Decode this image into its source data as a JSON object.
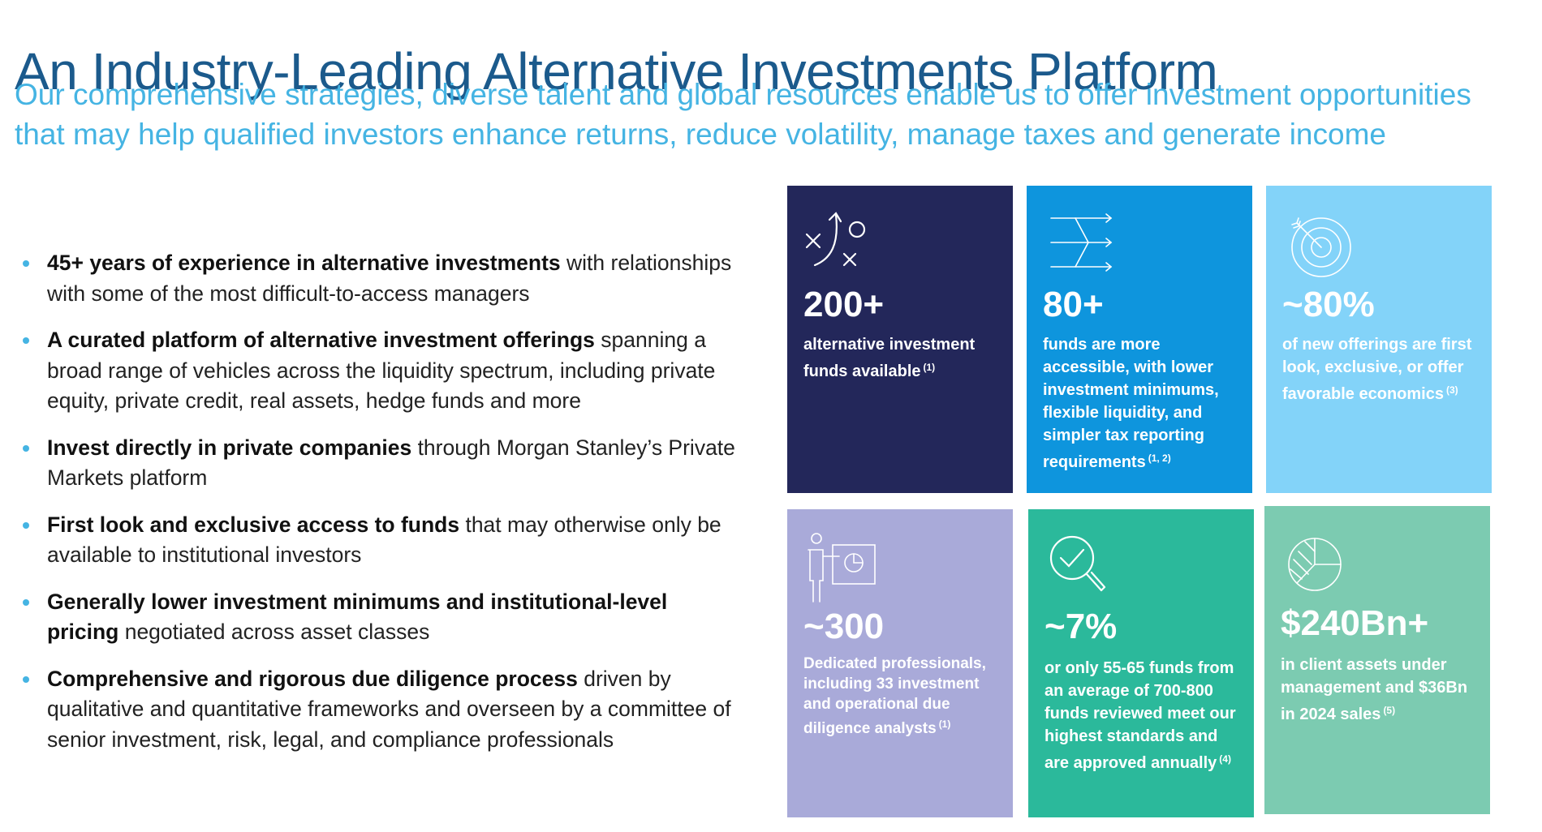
{
  "header": {
    "title": "An Industry-Leading Alternative Investments Platform",
    "subtitle_line1": "Our comprehensive strategies, diverse talent and global resources enable us to offer investment opportunities",
    "subtitle_line2": "that may help qualified investors enhance returns, reduce volatility, manage taxes and generate income"
  },
  "bullets": [
    {
      "bold": "45+ years of experience in alternative investments",
      "rest": " with relationships with some of the most difficult-to-access managers"
    },
    {
      "bold": "A curated platform of alternative investment offerings",
      "rest": " spanning a broad range of vehicles across the liquidity spectrum, including private equity, private credit, real assets, hedge funds and more"
    },
    {
      "bold": "Invest directly in private companies",
      "rest": " through Morgan Stanley’s Private Markets platform"
    },
    {
      "bold": "First look and exclusive access to funds",
      "rest": " that may otherwise only be available to institutional investors"
    },
    {
      "bold": "Generally lower investment minimums and institutional-level pricing",
      "rest": " negotiated across asset classes"
    },
    {
      "bold": "Comprehensive and rigorous due diligence process",
      "rest": " driven by qualitative and quantitative frameworks and overseen by a committee of senior investment, risk, legal, and compliance professionals"
    }
  ],
  "tiles": [
    {
      "stat": "200+",
      "desc": "alternative investment funds available",
      "note": "(1)",
      "color": "#23275a",
      "icon": "strategy-play-icon"
    },
    {
      "stat": "80+",
      "desc": "funds are more accessible, with lower investment minimums, flexible liquidity, and simpler tax reporting requirements",
      "note": "(1, 2)",
      "color": "#0e95dd",
      "icon": "merge-arrows-icon"
    },
    {
      "stat": "~80%",
      "desc": "of new offerings are first look, exclusive, or offer favorable economics",
      "note": "(3)",
      "color": "#83d3f9",
      "icon": "target-icon"
    },
    {
      "stat": "~300",
      "desc": "Dedicated professionals, including 33 investment and operational due diligence analysts",
      "note": "(1)",
      "color": "#a9aad9",
      "icon": "presenter-chart-icon"
    },
    {
      "stat": "~7%",
      "desc": "or only 55-65 funds from an average of 700-800 funds reviewed meet our highest standards and are approved annually",
      "note": "(4)",
      "color": "#2bb99b",
      "icon": "magnifier-check-icon"
    },
    {
      "stat": "$240Bn+",
      "desc": "in client assets under management and $36Bn in 2024 sales",
      "note": "(5)",
      "color": "#7ccbb1",
      "icon": "pie-chart-icon"
    }
  ]
}
